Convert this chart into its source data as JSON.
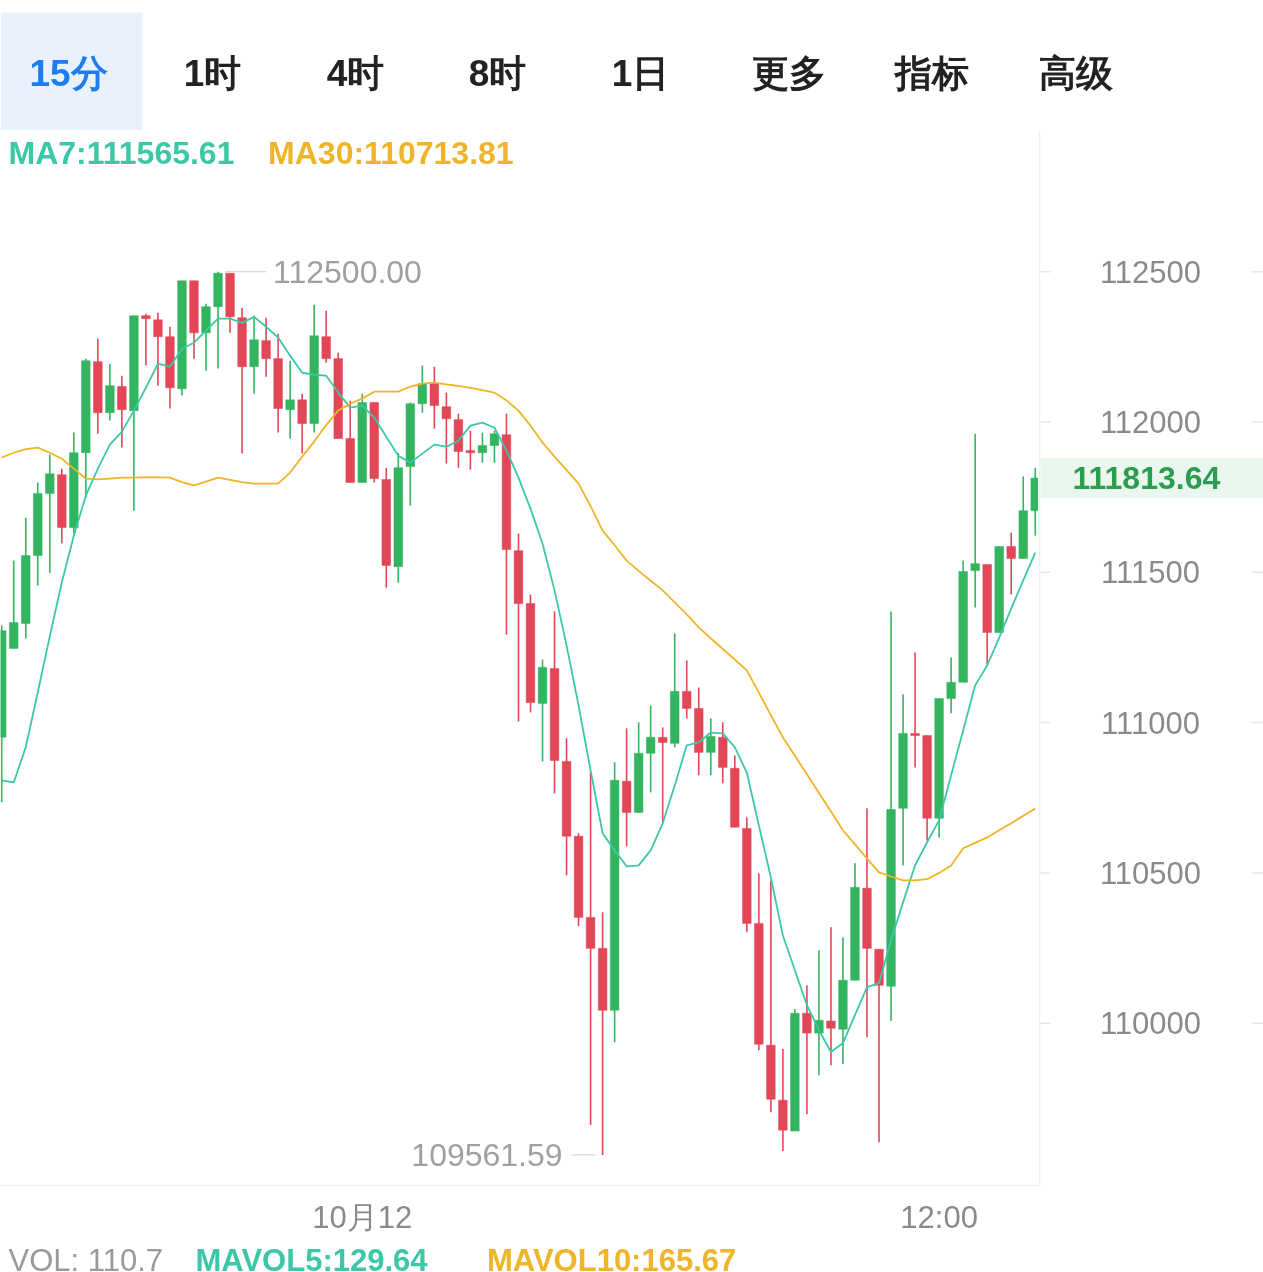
{
  "chart_data": {
    "type": "candlestick",
    "categories": [
      null,
      null,
      null,
      null,
      null,
      null,
      null,
      null,
      null,
      null,
      null,
      null,
      null,
      null,
      null,
      null,
      null,
      null,
      null,
      null,
      null,
      null,
      null,
      null,
      null,
      null,
      null,
      null,
      null,
      null,
      "10月12",
      null,
      null,
      null,
      null,
      null,
      null,
      null,
      null,
      null,
      null,
      null,
      null,
      null,
      null,
      null,
      null,
      null,
      null,
      null,
      null,
      null,
      null,
      null,
      null,
      null,
      null,
      null,
      null,
      null,
      null,
      null,
      null,
      null,
      null,
      null,
      null,
      null,
      null,
      null,
      null,
      null,
      null,
      null,
      null,
      null,
      null,
      null,
      "12:00",
      null,
      null,
      null,
      null,
      null,
      null,
      null,
      null
    ],
    "ohlc": [
      [
        110951,
        111323,
        110735,
        111306
      ],
      [
        111247,
        111539,
        111247,
        111333
      ],
      [
        111330,
        111682,
        111280,
        111556
      ],
      [
        111556,
        111799,
        111456,
        111762
      ],
      [
        111762,
        111892,
        111499,
        111828
      ],
      [
        111825,
        111845,
        111596,
        111649
      ],
      [
        111649,
        111965,
        111629,
        111898
      ],
      [
        111898,
        112211,
        111749,
        112204
      ],
      [
        112201,
        112277,
        111961,
        112031
      ],
      [
        112031,
        112194,
        112005,
        112121
      ],
      [
        112118,
        112154,
        111915,
        112041
      ],
      [
        112038,
        112354,
        111705,
        112354
      ],
      [
        112354,
        112360,
        112188,
        112344
      ],
      [
        112340,
        112364,
        112121,
        112284
      ],
      [
        112284,
        112317,
        112045,
        112114
      ],
      [
        112111,
        112470,
        112088,
        112470
      ],
      [
        112470,
        112470,
        112211,
        112297
      ],
      [
        112297,
        112394,
        112171,
        112384
      ],
      [
        112384,
        112500,
        112178,
        112495
      ],
      [
        112495,
        112495,
        112297,
        112350
      ],
      [
        112347,
        112380,
        111895,
        112184
      ],
      [
        112184,
        112354,
        112094,
        112274
      ],
      [
        112271,
        112347,
        112151,
        112211
      ],
      [
        112211,
        112294,
        111965,
        112045
      ],
      [
        112041,
        112204,
        111945,
        112074
      ],
      [
        112074,
        112094,
        111895,
        111995
      ],
      [
        111995,
        112390,
        111965,
        112287
      ],
      [
        112284,
        112370,
        112197,
        112211
      ],
      [
        112211,
        112231,
        111945,
        111945
      ],
      [
        111945,
        112071,
        111799,
        111799
      ],
      [
        111799,
        112094,
        111799,
        112065
      ],
      [
        112065,
        112065,
        111799,
        111812
      ],
      [
        111809,
        111848,
        111449,
        111523
      ],
      [
        111519,
        111898,
        111466,
        111848
      ],
      [
        111852,
        112065,
        111722,
        112061
      ],
      [
        112061,
        112188,
        112031,
        112128
      ],
      [
        112128,
        112184,
        111978,
        112055
      ],
      [
        112051,
        112098,
        111862,
        112011
      ],
      [
        112008,
        112028,
        111848,
        111902
      ],
      [
        111905,
        111971,
        111842,
        111898
      ],
      [
        111898,
        111965,
        111865,
        111922
      ],
      [
        111922,
        111971,
        111865,
        111961
      ],
      [
        111958,
        112028,
        111293,
        111576
      ],
      [
        111572,
        111629,
        111004,
        111396
      ],
      [
        111396,
        111426,
        111034,
        111067
      ],
      [
        111064,
        111210,
        110871,
        111184
      ],
      [
        111180,
        111370,
        110765,
        110874
      ],
      [
        110871,
        110948,
        110492,
        110622
      ],
      [
        110622,
        110632,
        110323,
        110352
      ],
      [
        110352,
        110834,
        109661,
        110249
      ],
      [
        110249,
        110369,
        109561.59,
        110043
      ],
      [
        110043,
        110868,
        109937,
        110808
      ],
      [
        110805,
        110981,
        110588,
        110701
      ],
      [
        110701,
        111001,
        110701,
        110898
      ],
      [
        110898,
        111057,
        110768,
        110951
      ],
      [
        110951,
        110984,
        110665,
        110934
      ],
      [
        110931,
        111297,
        110918,
        111104
      ],
      [
        111104,
        111207,
        111014,
        111047
      ],
      [
        111047,
        111117,
        110825,
        110901
      ],
      [
        110901,
        111014,
        110825,
        110954
      ],
      [
        110951,
        111001,
        110798,
        110851
      ],
      [
        110848,
        110891,
        110652,
        110652
      ],
      [
        110648,
        110685,
        110303,
        110332
      ],
      [
        110332,
        110499,
        109910,
        109930
      ],
      [
        109927,
        110475,
        109704,
        109747
      ],
      [
        109744,
        109914,
        109575,
        109644
      ],
      [
        109641,
        110047,
        109641,
        110033
      ],
      [
        110033,
        110126,
        109697,
        109967
      ],
      [
        109967,
        110243,
        109827,
        110010
      ],
      [
        110007,
        110319,
        109860,
        109983
      ],
      [
        109980,
        110286,
        109864,
        110143
      ],
      [
        110143,
        110532,
        110143,
        110452
      ],
      [
        110449,
        110715,
        109953,
        110249
      ],
      [
        110246,
        110246,
        109604,
        110126
      ],
      [
        110123,
        111370,
        110007,
        110711
      ],
      [
        110715,
        111094,
        110525,
        110964
      ],
      [
        110964,
        111233,
        110851,
        110957
      ],
      [
        110957,
        110957,
        110608,
        110682
      ],
      [
        110682,
        111080,
        110618,
        111080
      ],
      [
        111080,
        111217,
        111031,
        111134
      ],
      [
        111134,
        111539,
        111134,
        111503
      ],
      [
        111506,
        111961,
        111383,
        111529
      ],
      [
        111526,
        111526,
        111190,
        111300
      ],
      [
        111300,
        111586,
        111300,
        111586
      ],
      [
        111586,
        111632,
        111426,
        111546
      ],
      [
        111546,
        111819,
        111546,
        111705
      ],
      [
        111705,
        111848,
        111622,
        111813.64
      ]
    ],
    "colors": [
      "#33b560",
      "#33b560",
      "#33b560",
      "#33b560",
      "#33b560",
      "#e24657",
      "#33b560",
      "#33b560",
      "#e24657",
      "#33b560",
      "#e24657",
      "#33b560",
      "#e24657",
      "#e24657",
      "#e24657",
      "#33b560",
      "#e24657",
      "#33b560",
      "#33b560",
      "#e24657",
      "#e24657",
      "#33b560",
      "#e24657",
      "#e24657",
      "#33b560",
      "#e24657",
      "#33b560",
      "#e24657",
      "#e24657",
      "#e24657",
      "#33b560",
      "#e24657",
      "#e24657",
      "#33b560",
      "#33b560",
      "#33b560",
      "#e24657",
      "#e24657",
      "#e24657",
      "#e24657",
      "#33b560",
      "#33b560",
      "#e24657",
      "#e24657",
      "#e24657",
      "#33b560",
      "#e24657",
      "#e24657",
      "#e24657",
      "#e24657",
      "#e24657",
      "#33b560",
      "#e24657",
      "#33b560",
      "#33b560",
      "#e24657",
      "#33b560",
      "#e24657",
      "#e24657",
      "#33b560",
      "#e24657",
      "#e24657",
      "#e24657",
      "#e24657",
      "#e24657",
      "#e24657",
      "#33b560",
      "#e24657",
      "#33b560",
      "#e24657",
      "#33b560",
      "#33b560",
      "#e24657",
      "#e24657",
      "#33b560",
      "#33b560",
      "#e24657",
      "#e24657",
      "#33b560",
      "#33b560",
      "#33b560",
      "#33b560",
      "#e24657",
      "#33b560",
      "#e24657",
      "#33b560",
      "#33b560"
    ],
    "series": [
      {
        "name": "MA7:111565.61",
        "type": "line",
        "color": "#3cc8a8",
        "values": [
          110808,
          110801,
          110918,
          111100,
          111287,
          111466,
          111622,
          111755,
          111845,
          111925,
          111968,
          112038,
          112114,
          112194,
          112184,
          112244,
          112264,
          112304,
          112344,
          112344,
          112330,
          112350,
          112317,
          112281,
          112221,
          112164,
          112158,
          112154,
          112098,
          112048,
          112055,
          112015,
          111951,
          111888,
          111865,
          111895,
          111925,
          111918,
          111938,
          111988,
          111998,
          111981,
          111905,
          111815,
          111712,
          111596,
          111440,
          111257,
          111057,
          110841,
          110632,
          110575,
          110522,
          110525,
          110575,
          110665,
          110791,
          110924,
          110934,
          110967,
          110964,
          110918,
          110834,
          110658,
          110485,
          110292,
          110176,
          110060,
          109977,
          109904,
          109934,
          110027,
          110120,
          110133,
          110276,
          110402,
          110525,
          110602,
          110675,
          110825,
          110974,
          111124,
          111190,
          111283,
          111380,
          111473,
          111565.61
        ]
      },
      {
        "name": "MA30:110713.81",
        "type": "line",
        "color": "#f0b429",
        "values": [
          111882,
          111898,
          111910,
          111915,
          111898,
          111878,
          111845,
          111812,
          111809,
          111812,
          111815,
          111815,
          111817,
          111816,
          111815,
          111800,
          111789,
          111802,
          111815,
          111808,
          111800,
          111795,
          111795,
          111795,
          111832,
          111885,
          111935,
          111990,
          112038,
          112061,
          112078,
          112101,
          112101,
          112101,
          112118,
          112128,
          112131,
          112125,
          112120,
          112114,
          112106,
          112098,
          112072,
          112038,
          111988,
          111932,
          111885,
          111840,
          111795,
          111720,
          111639,
          111590,
          111539,
          111505,
          111472,
          111440,
          111400,
          111360,
          111317,
          111280,
          111245,
          111210,
          111174,
          111100,
          111025,
          110951,
          110890,
          110828,
          110766,
          110704,
          110642,
          110595,
          110548,
          110502,
          110488,
          110475,
          110475,
          110479,
          110500,
          110525,
          110582,
          110600,
          110618,
          110642,
          110665,
          110690,
          110713.81
        ]
      }
    ],
    "ylim": [
      109460,
      112970
    ],
    "yticks": [
      110000,
      110500,
      111000,
      111500,
      112000,
      112500
    ],
    "grid": false,
    "legend": "top left",
    "marker": "none",
    "line_style": "solid",
    "annotations": [
      "112500.00",
      "109561.59",
      "111813.64",
      "15分",
      "1时",
      "4时",
      "8时",
      "1日",
      "更多",
      "指标",
      "高级",
      "VOL: 110.7",
      "MAVOL5:129.64",
      "MAVOL10:165.67"
    ]
  }
}
